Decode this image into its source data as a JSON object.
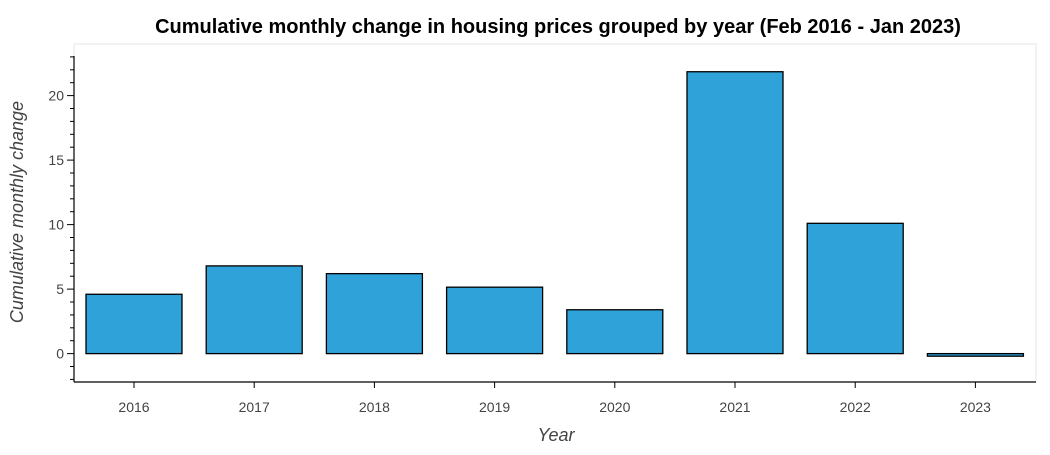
{
  "chart_data": {
    "type": "bar",
    "title": "Cumulative monthly change in housing prices grouped by year (Feb 2016 - Jan 2023)",
    "xlabel": "Year",
    "ylabel": "Cumulative monthly change",
    "categories": [
      "2016",
      "2017",
      "2018",
      "2019",
      "2020",
      "2021",
      "2022",
      "2023"
    ],
    "values": [
      4.6,
      6.8,
      6.2,
      5.15,
      3.4,
      21.85,
      10.1,
      -0.2
    ],
    "ylim": [
      -2.2,
      24
    ],
    "yticks": [
      0,
      5,
      10,
      15,
      20
    ],
    "ytick_labels": [
      "0",
      "5",
      "10",
      "15",
      "20"
    ],
    "minor_ytick_step": 1,
    "bar_color": "#30a2da",
    "bar_edge_color": "#000000",
    "grid": false,
    "legend": "none"
  }
}
